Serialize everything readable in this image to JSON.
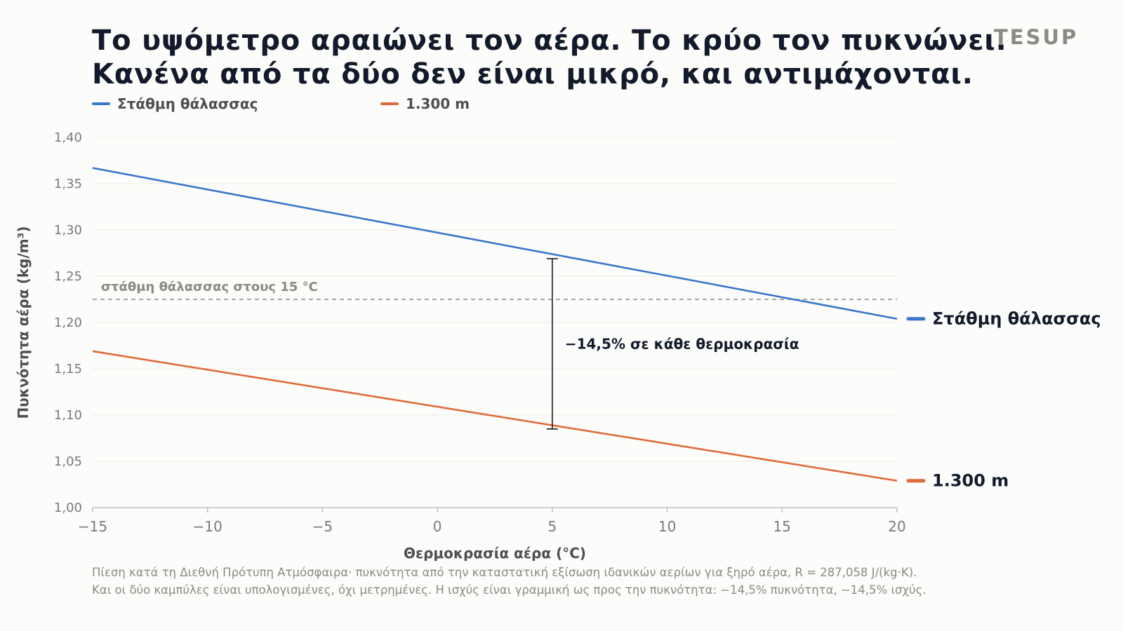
{
  "header": {
    "title_lines": [
      "Το υψόμετρο αραιώνει τον αέρα. Το κρύο τον πυκνώνει.",
      "Κανένα από τα δύο δεν είναι μικρό, και αντιμάχονται."
    ],
    "brand": "TESUP"
  },
  "legend": [
    {
      "label": "Στάθμη θάλασσας",
      "color": "#3a78c9"
    },
    {
      "label": "1.300 m",
      "color": "#e06a3a"
    }
  ],
  "chart_data": {
    "type": "line",
    "xlabel": "Θερμοκρασία αέρα (°C)",
    "ylabel": "Πυκνότητα αέρα (kg/m³)",
    "xlim": [
      -15,
      20
    ],
    "ylim": [
      1.0,
      1.4
    ],
    "x_ticks": [
      "−15",
      "−10",
      "−5",
      "0",
      "5",
      "10",
      "15",
      "20"
    ],
    "x_tick_values": [
      -15,
      -10,
      -5,
      0,
      5,
      10,
      15,
      20
    ],
    "y_ticks": [
      "1,00",
      "1,05",
      "1,10",
      "1,15",
      "1,20",
      "1,25",
      "1,30",
      "1,35",
      "1,40"
    ],
    "y_tick_values": [
      1.0,
      1.05,
      1.1,
      1.15,
      1.2,
      1.25,
      1.3,
      1.35,
      1.4
    ],
    "grid": true,
    "series": [
      {
        "name": "Στάθμη θάλασσας",
        "color": "#3a78c9",
        "x": [
          -15,
          20
        ],
        "values": [
          1.367,
          1.204
        ],
        "end_label": "Στάθμη θάλασσας"
      },
      {
        "name": "1.300 m",
        "color": "#e06a3a",
        "x": [
          -15,
          20
        ],
        "values": [
          1.169,
          1.029
        ],
        "end_label": "1.300 m"
      }
    ],
    "reference_line": {
      "y": 1.225,
      "label": "στάθμη θάλασσας στους 15 °C",
      "color": "#8a8a86"
    },
    "annotation": {
      "x": 5,
      "y_top": 1.269,
      "y_bottom": 1.085,
      "label": "−14,5% σε κάθε θερμοκρασία"
    }
  },
  "footnote": [
    "Πίεση κατά τη Διεθνή Πρότυπη Ατμόσφαιρα· πυκνότητα από την καταστατική εξίσωση ιδανικών αερίων για ξηρό αέρα, R = 287,058 J/(kg·K).",
    "Και οι δύο καμπύλες είναι υπολογισμένες, όχι μετρημένες. Η ισχύς είναι γραμμική ως προς την πυκνότητα: −14,5% πυκνότητα, −14,5% ισχύς."
  ]
}
